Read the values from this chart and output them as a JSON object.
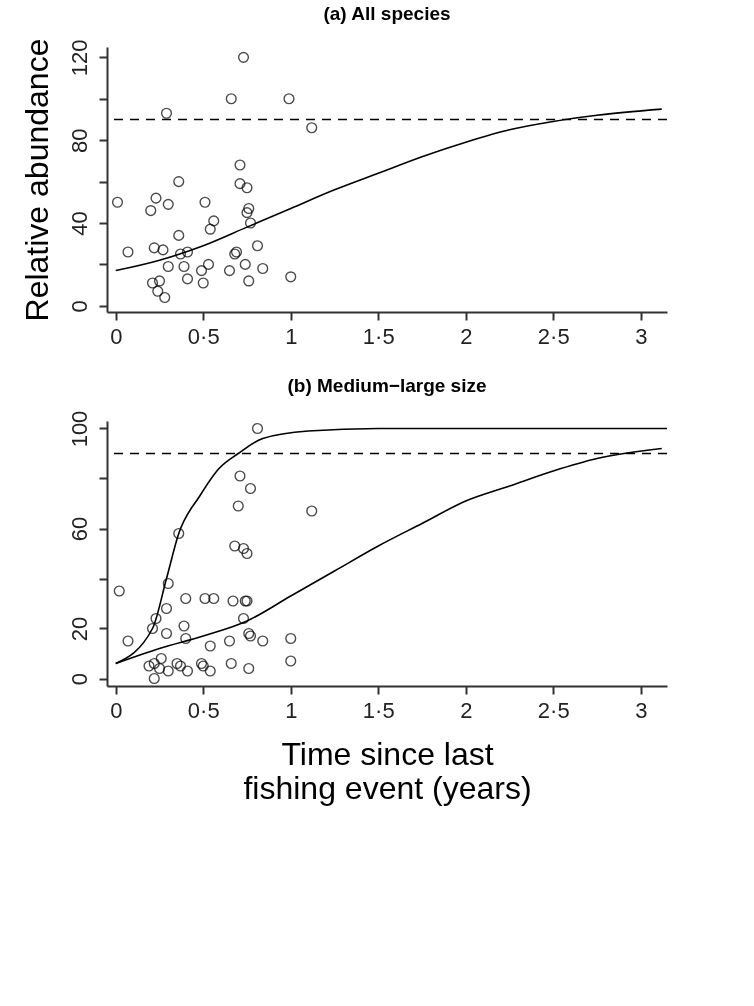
{
  "chart_data": [
    {
      "type": "scatter",
      "title": "(a) All species",
      "ylabel": "Relative abundance",
      "grid": false,
      "xlim": [
        -0.05,
        3.15
      ],
      "ylim": [
        -3,
        125
      ],
      "xticks": [
        0,
        {
          "value": 0.5,
          "label": "0·5"
        },
        1,
        {
          "value": 1.5,
          "label": "1·5"
        },
        2,
        {
          "value": 2.5,
          "label": "2·5"
        },
        3
      ],
      "yticks": [
        0,
        40,
        80,
        120,
        {
          "value": 20,
          "label": null
        },
        {
          "value": 60,
          "label": null
        },
        {
          "value": 100,
          "label": null
        }
      ],
      "ref_lines": [
        {
          "axis": "y",
          "value": 90,
          "label": null,
          "color": "#000000",
          "line_style": "dashed"
        }
      ],
      "series": [
        {
          "color": "#000000",
          "marker": "circle",
          "x": [
            0.01,
            0.07,
            0.29,
            0.23,
            0.2,
            0.3,
            0.36,
            0.36,
            0.22,
            0.27,
            0.37,
            0.41,
            0.3,
            0.39,
            0.53,
            0.49,
            0.21,
            0.25,
            0.24,
            0.28,
            0.41,
            0.5,
            0.51,
            0.56,
            0.54,
            0.66,
            0.73,
            0.99,
            1.12,
            0.71,
            0.71,
            0.75,
            0.76,
            0.75,
            0.77,
            0.81,
            0.69,
            0.68,
            0.65,
            0.74,
            0.76,
            0.84,
            1.0
          ],
          "values": [
            50,
            26,
            93,
            52,
            46,
            49,
            60,
            34,
            28,
            27,
            25,
            26,
            19,
            19,
            20,
            17,
            11,
            12,
            7,
            4,
            13,
            11,
            50,
            41,
            37,
            100,
            120,
            100,
            86,
            68,
            59,
            57,
            47,
            45,
            40,
            29,
            26,
            25,
            17,
            20,
            12,
            18,
            14
          ]
        },
        {
          "type": "line",
          "color": "#000000",
          "x": [
            0,
            0.25,
            0.5,
            0.75,
            1,
            1.25,
            1.5,
            1.75,
            2,
            2.25,
            2.5,
            2.75,
            3.12
          ],
          "values": [
            17,
            22,
            29,
            38,
            47,
            56,
            64,
            72,
            79,
            85,
            89,
            92,
            95
          ]
        }
      ]
    },
    {
      "type": "scatter",
      "title": "(b) Medium−large size",
      "xlabel": "Time since last fishing event (years)",
      "grid": false,
      "xlim": [
        -0.05,
        3.15
      ],
      "ylim": [
        -3,
        103
      ],
      "xticks": [
        0,
        {
          "value": 0.5,
          "label": "0·5"
        },
        1,
        {
          "value": 1.5,
          "label": "1·5"
        },
        2,
        {
          "value": 2.5,
          "label": "2·5"
        },
        3
      ],
      "yticks": [
        0,
        20,
        60,
        100,
        {
          "value": 40,
          "label": null
        },
        {
          "value": 80,
          "label": null
        }
      ],
      "ref_lines": [
        {
          "axis": "y",
          "value": 90,
          "label": null,
          "color": "#000000",
          "line_style": "dashed"
        }
      ],
      "series": [
        {
          "color": "#000000",
          "marker": "circle",
          "x": [
            0.02,
            0.07,
            0.81,
            0.71,
            0.77,
            0.7,
            1.12,
            0.36,
            0.68,
            0.73,
            0.75,
            0.3,
            0.4,
            0.51,
            0.56,
            0.67,
            0.74,
            0.75,
            0.29,
            0.23,
            0.21,
            0.29,
            0.39,
            0.4,
            0.73,
            0.76,
            0.77,
            0.84,
            1.0,
            0.54,
            0.65,
            1.0,
            0.66,
            0.76,
            0.19,
            0.22,
            0.26,
            0.25,
            0.22,
            0.3,
            0.35,
            0.37,
            0.41,
            0.49,
            0.5,
            0.54
          ],
          "values": [
            35,
            15,
            100,
            81,
            76,
            69,
            67,
            58,
            53,
            52,
            50,
            38,
            32,
            32,
            32,
            31,
            31,
            31,
            28,
            24,
            20,
            18,
            21,
            16,
            24,
            18,
            17,
            15,
            16,
            13,
            15,
            7,
            6,
            4,
            5,
            6,
            8,
            4,
            0,
            3,
            6,
            5,
            3,
            6,
            5,
            3
          ]
        },
        {
          "type": "line",
          "color": "#000000",
          "x": [
            0,
            0.21,
            0.29,
            0.36,
            0.48,
            0.59,
            0.7,
            0.84,
            1.1,
            1.5,
            2,
            2.5,
            3.15
          ],
          "values": [
            6,
            20,
            40,
            58,
            73,
            84,
            90,
            96,
            99,
            100,
            100,
            100,
            100
          ]
        },
        {
          "type": "line",
          "color": "#000000",
          "x": [
            0,
            0.25,
            0.5,
            0.75,
            1,
            1.25,
            1.5,
            1.75,
            2,
            2.25,
            2.5,
            2.75,
            3.12
          ],
          "values": [
            6,
            12,
            17,
            23,
            33,
            43,
            53,
            62,
            71,
            77,
            83,
            88,
            92
          ]
        }
      ]
    }
  ]
}
